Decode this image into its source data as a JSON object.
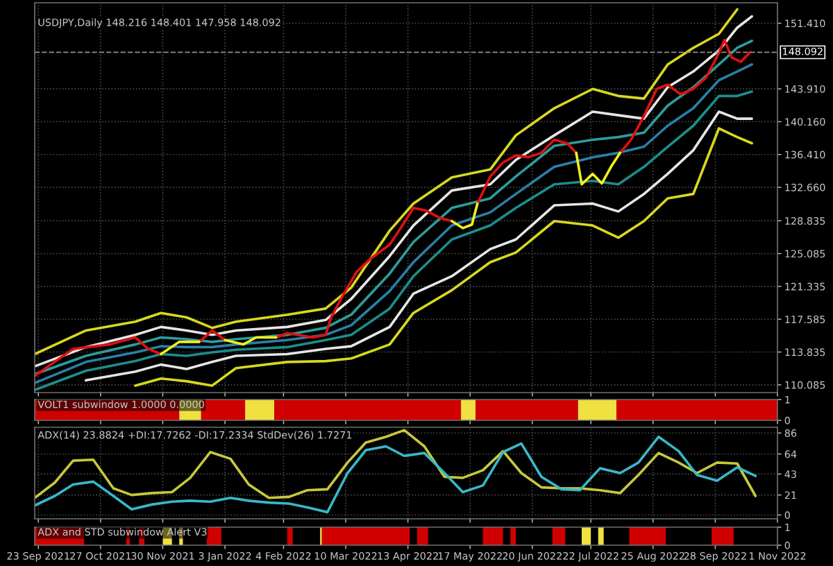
{
  "chart_data": [
    {
      "type": "line",
      "title": "USDJPY,Daily 148.216 148.401 147.958 148.092",
      "xlim": [
        "2021-09-21",
        "2022-11-01"
      ],
      "ylim": [
        109.2,
        153.75
      ],
      "yticks": [
        {
          "value": 110.085,
          "label": "110.085"
        },
        {
          "value": 113.835,
          "label": "113.835"
        },
        {
          "value": 117.585,
          "label": "117.585"
        },
        {
          "value": 121.335,
          "label": "121.335"
        },
        {
          "value": 125.085,
          "label": "125.085"
        },
        {
          "value": 128.835,
          "label": "128.835"
        },
        {
          "value": 132.66,
          "label": "132.660"
        },
        {
          "value": 136.41,
          "label": "136.410"
        },
        {
          "value": 140.16,
          "label": "140.160"
        },
        {
          "value": 143.91,
          "label": "143.910"
        },
        {
          "value": 151.41,
          "label": "151.410"
        }
      ],
      "grid": true,
      "tick_labels": "y",
      "ref_lines": [
        {
          "axis": "y",
          "value": 148.092,
          "label": "148.092",
          "color": "#909090",
          "line_style": "dashed"
        }
      ],
      "x": [
        "2021-09-21",
        "2021-10-19",
        "2021-11-15",
        "2021-11-29",
        "2021-12-13",
        "2021-12-27",
        "2022-01-09",
        "2022-02-06",
        "2022-02-27",
        "2022-03-13",
        "2022-04-03",
        "2022-04-16",
        "2022-05-07",
        "2022-05-28",
        "2022-06-11",
        "2022-07-02",
        "2022-07-23",
        "2022-08-06",
        "2022-08-20",
        "2022-09-02",
        "2022-09-16",
        "2022-09-30",
        "2022-10-10",
        "2022-10-18"
      ],
      "series": [
        {
          "color": "#d8d820",
          "values": [
            113.6,
            116.3,
            117.3,
            118.3,
            117.8,
            116.6,
            117.3,
            118.1,
            118.8,
            121.2,
            127.7,
            130.8,
            133.8,
            134.7,
            138.6,
            141.7,
            143.9,
            143.1,
            142.8,
            146.7,
            148.6,
            150.2,
            153.0,
            null
          ]
        },
        {
          "color": "#e6e6e6",
          "values": [
            112.2,
            114.4,
            115.8,
            116.7,
            116.3,
            115.8,
            116.3,
            116.7,
            117.5,
            119.9,
            124.8,
            128.3,
            132.3,
            133.0,
            135.8,
            138.6,
            141.3,
            140.9,
            140.5,
            144.1,
            145.9,
            148.3,
            150.9,
            152.2
          ]
        },
        {
          "color": "#2e9c9c",
          "values": [
            111.3,
            113.4,
            114.7,
            115.5,
            115.3,
            115.0,
            115.3,
            115.8,
            116.6,
            118.1,
            122.8,
            126.4,
            130.3,
            131.4,
            133.9,
            137.4,
            138.1,
            138.4,
            138.9,
            142.0,
            144.1,
            146.7,
            148.6,
            149.4
          ]
        },
        {
          "color": "#2b7fa8",
          "values": [
            110.3,
            112.7,
            113.8,
            114.5,
            114.4,
            114.4,
            114.7,
            115.2,
            115.8,
            116.9,
            120.8,
            124.1,
            128.3,
            129.8,
            131.9,
            135.0,
            136.1,
            136.6,
            137.3,
            139.7,
            141.7,
            144.9,
            145.9,
            146.7
          ]
        },
        {
          "color": "#1e8c8c",
          "values": [
            109.5,
            111.7,
            112.8,
            113.6,
            113.4,
            113.8,
            114.1,
            114.4,
            115.2,
            115.8,
            118.8,
            122.5,
            126.7,
            128.3,
            130.3,
            133.0,
            133.4,
            133.0,
            135.0,
            137.3,
            139.7,
            143.1,
            143.1,
            143.6
          ]
        },
        {
          "color": "#e6e6e6",
          "values": [
            null,
            110.6,
            111.6,
            112.4,
            111.9,
            112.7,
            113.4,
            113.6,
            114.2,
            114.5,
            116.7,
            120.5,
            122.5,
            125.6,
            126.7,
            130.6,
            130.8,
            129.9,
            131.9,
            134.2,
            136.9,
            141.3,
            140.5,
            140.5
          ]
        },
        {
          "color": "#d8d820",
          "values": [
            null,
            null,
            110.0,
            110.8,
            110.5,
            110.0,
            112.0,
            112.7,
            112.8,
            113.1,
            114.7,
            118.3,
            120.9,
            124.1,
            125.2,
            128.8,
            128.3,
            126.9,
            128.8,
            131.4,
            131.9,
            139.4,
            138.4,
            137.7
          ]
        },
        {
          "color": "#e01010",
          "x": [
            "2021-09-21",
            "2021-10-12",
            "2021-11-01",
            "2021-11-15",
            "2021-11-22",
            "2021-11-29",
            "2021-12-09",
            "2021-12-20",
            "2021-12-27",
            "2022-01-03",
            "2022-01-13",
            "2022-01-20",
            "2022-01-31",
            "2022-02-06",
            "2022-02-20",
            "2022-02-27",
            "2022-03-02",
            "2022-03-09",
            "2022-03-16",
            "2022-03-23",
            "2022-04-03",
            "2022-04-10",
            "2022-04-16",
            "2022-04-23",
            "2022-04-30",
            "2022-05-07",
            "2022-05-13",
            "2022-05-18",
            "2022-05-21",
            "2022-05-28",
            "2022-06-04",
            "2022-06-11",
            "2022-06-18",
            "2022-06-25",
            "2022-07-02",
            "2022-07-09",
            "2022-07-14",
            "2022-07-17",
            "2022-07-23",
            "2022-07-28",
            "2022-08-02",
            "2022-08-07",
            "2022-08-13",
            "2022-08-20",
            "2022-08-27",
            "2022-09-02",
            "2022-09-09",
            "2022-09-16",
            "2022-09-23",
            "2022-09-30",
            "2022-10-03",
            "2022-10-07",
            "2022-10-12",
            "2022-10-17"
          ],
          "values": [
            111.1,
            114.2,
            114.7,
            115.5,
            114.2,
            113.6,
            null,
            115.0,
            116.3,
            115.2,
            null,
            null,
            115.5,
            116.0,
            115.5,
            115.8,
            117.8,
            120.5,
            123.0,
            124.4,
            126.1,
            128.3,
            130.3,
            130.0,
            129.2,
            128.8,
            null,
            null,
            130.8,
            133.9,
            135.5,
            136.3,
            136.1,
            136.6,
            138.1,
            137.7,
            136.6,
            null,
            null,
            null,
            null,
            136.6,
            138.1,
            140.8,
            143.9,
            144.4,
            143.3,
            143.9,
            145.2,
            148.0,
            149.5,
            147.5,
            147.0,
            148.1
          ]
        },
        {
          "color": "#f0f020",
          "x": [
            "2021-11-29",
            "2021-12-09",
            "2021-12-20",
            "2021-12-27",
            "2022-01-03",
            "2022-01-13",
            "2022-01-20",
            "2022-01-31",
            "2022-02-06",
            "2022-02-20",
            "2022-02-27",
            "2022-03-02",
            "2022-03-09",
            "2022-03-16",
            "2022-03-23",
            "2022-04-03",
            "2022-04-10",
            "2022-04-16",
            "2022-04-23",
            "2022-04-30",
            "2022-05-07",
            "2022-05-13",
            "2022-05-18",
            "2022-05-21",
            "2022-05-28",
            "2022-06-04",
            "2022-06-11",
            "2022-06-18",
            "2022-06-25",
            "2022-07-02",
            "2022-07-09",
            "2022-07-14",
            "2022-07-17",
            "2022-07-23",
            "2022-07-28",
            "2022-08-02",
            "2022-08-07"
          ],
          "values": [
            113.6,
            115.0,
            115.0,
            null,
            115.2,
            114.7,
            115.5,
            115.5,
            null,
            null,
            null,
            null,
            null,
            null,
            null,
            null,
            null,
            null,
            null,
            null,
            128.8,
            128.0,
            128.4,
            130.8,
            null,
            null,
            null,
            null,
            null,
            null,
            null,
            136.6,
            133.0,
            134.2,
            133.1,
            135.0,
            136.6
          ]
        }
      ]
    },
    {
      "type": "area",
      "title": "VOLT1 subwindow 1.0000 0.0000",
      "xlim": [
        "2021-09-21",
        "2022-11-01"
      ],
      "ylim": [
        0,
        1
      ],
      "yticks": [
        0,
        1
      ],
      "tick_labels": "y",
      "series": [
        {
          "color": "#d00000",
          "x": [
            "2021-09-21",
            "2021-12-09"
          ],
          "values": [
            1,
            1
          ]
        },
        {
          "color": "#f0e040",
          "x": [
            "2021-12-09",
            "2021-12-21"
          ],
          "values": [
            1,
            1
          ]
        },
        {
          "color": "#d00000",
          "x": [
            "2021-12-21",
            "2022-01-14"
          ],
          "values": [
            1,
            1
          ]
        },
        {
          "color": "#f0e040",
          "x": [
            "2022-01-14",
            "2022-01-30"
          ],
          "values": [
            1,
            1
          ]
        },
        {
          "color": "#d00000",
          "x": [
            "2022-01-30",
            "2022-05-12"
          ],
          "values": [
            1,
            1
          ]
        },
        {
          "color": "#f0e040",
          "x": [
            "2022-05-12",
            "2022-05-20"
          ],
          "values": [
            1,
            1
          ]
        },
        {
          "color": "#d00000",
          "x": [
            "2022-05-20",
            "2022-07-15"
          ],
          "values": [
            1,
            1
          ]
        },
        {
          "color": "#f0e040",
          "x": [
            "2022-07-15",
            "2022-08-05"
          ],
          "values": [
            1,
            1
          ]
        },
        {
          "color": "#d00000",
          "x": [
            "2022-08-05",
            "2022-11-01"
          ],
          "values": [
            1,
            1
          ]
        }
      ]
    },
    {
      "type": "line",
      "title": "ADX(14) 23.8824 +DI:17.7262 -DI:17.2334 StdDev(26) 1.7271",
      "xlim": [
        "2021-09-21",
        "2022-11-01"
      ],
      "ylim": [
        -4,
        92
      ],
      "yticks": [
        0,
        21,
        43,
        64,
        86
      ],
      "grid": true,
      "tick_labels": "y",
      "x": [
        "2021-09-21",
        "2021-10-02",
        "2021-10-12",
        "2021-10-23",
        "2021-11-03",
        "2021-11-13",
        "2021-11-24",
        "2021-12-05",
        "2021-12-15",
        "2021-12-26",
        "2022-01-06",
        "2022-01-16",
        "2022-01-27",
        "2022-02-07",
        "2022-02-17",
        "2022-02-28",
        "2022-03-11",
        "2022-03-21",
        "2022-04-01",
        "2022-04-11",
        "2022-04-22",
        "2022-05-03",
        "2022-05-13",
        "2022-05-24",
        "2022-06-04",
        "2022-06-14",
        "2022-06-25",
        "2022-07-06",
        "2022-07-16",
        "2022-07-27",
        "2022-08-07",
        "2022-08-17",
        "2022-08-28",
        "2022-09-08",
        "2022-09-18",
        "2022-09-29",
        "2022-10-10",
        "2022-10-20"
      ],
      "series": [
        {
          "color": "#c8c83c",
          "values": [
            18,
            34,
            57,
            58,
            28,
            21,
            23,
            24,
            39,
            66,
            59,
            32,
            18,
            19,
            26,
            27,
            55,
            76,
            82,
            89,
            72,
            40,
            39,
            47,
            67,
            44,
            29,
            28,
            28,
            26,
            23,
            42,
            65,
            55,
            44,
            55,
            54,
            20
          ]
        },
        {
          "color": "#38b8c8",
          "values": [
            10,
            20,
            32,
            35,
            20,
            6,
            11,
            14,
            15,
            14,
            18,
            15,
            13,
            12,
            8,
            3,
            44,
            68,
            72,
            62,
            65,
            44,
            24,
            31,
            66,
            75,
            40,
            27,
            26,
            49,
            44,
            55,
            82,
            67,
            42,
            36,
            50,
            41
          ]
        }
      ]
    },
    {
      "type": "area",
      "title": "ADX and STD subwindow Alert V3",
      "xlim": [
        "2021-09-21",
        "2022-11-01"
      ],
      "ylim": [
        0,
        1
      ],
      "yticks": [
        0,
        1
      ],
      "xticks": [
        {
          "value": "2021-09-23",
          "label": "23 Sep 2021"
        },
        {
          "value": "2021-10-27",
          "label": "27 Oct 2021"
        },
        {
          "value": "2021-11-30",
          "label": "30 Nov 2021"
        },
        {
          "value": "2022-01-03",
          "label": "3 Jan 2022"
        },
        {
          "value": "2022-02-04",
          "label": "4 Feb 2022"
        },
        {
          "value": "2022-03-10",
          "label": "10 Mar 2022"
        },
        {
          "value": "2022-04-13",
          "label": "13 Apr 2022"
        },
        {
          "value": "2022-05-17",
          "label": "17 May 2022"
        },
        {
          "value": "2022-06-20",
          "label": "20 Jun 2022"
        },
        {
          "value": "2022-07-22",
          "label": "22 Jul 2022"
        },
        {
          "value": "2022-08-25",
          "label": "25 Aug 2022"
        },
        {
          "value": "2022-09-28",
          "label": "28 Sep 2022"
        },
        {
          "value": "2022-11-01",
          "label": "1 Nov 2022"
        }
      ],
      "series": [
        {
          "color": "#d00000",
          "x": [
            "2021-09-21",
            "2021-10-18"
          ],
          "values": [
            1,
            1
          ]
        },
        {
          "color": "#d00000",
          "x": [
            "2021-11-10",
            "2021-11-12"
          ],
          "values": [
            1,
            1
          ]
        },
        {
          "color": "#d00000",
          "x": [
            "2021-11-17",
            "2021-11-20"
          ],
          "values": [
            1,
            1
          ]
        },
        {
          "color": "#f0e040",
          "x": [
            "2021-11-30",
            "2021-12-05"
          ],
          "values": [
            1,
            1
          ]
        },
        {
          "color": "#f0e040",
          "x": [
            "2021-12-09",
            "2021-12-11"
          ],
          "values": [
            1,
            1
          ]
        },
        {
          "color": "#d00000",
          "x": [
            "2021-12-24",
            "2022-01-01"
          ],
          "values": [
            1,
            1
          ]
        },
        {
          "color": "#d00000",
          "x": [
            "2022-02-06",
            "2022-02-09"
          ],
          "values": [
            1,
            1
          ]
        },
        {
          "color": "#f0e040",
          "x": [
            "2022-02-24",
            "2022-02-25"
          ],
          "values": [
            1,
            1
          ]
        },
        {
          "color": "#d00000",
          "x": [
            "2022-02-25",
            "2022-04-14"
          ],
          "values": [
            1,
            1
          ]
        },
        {
          "color": "#d00000",
          "x": [
            "2022-04-18",
            "2022-04-24"
          ],
          "values": [
            1,
            1
          ]
        },
        {
          "color": "#d00000",
          "x": [
            "2022-05-24",
            "2022-06-04"
          ],
          "values": [
            1,
            1
          ]
        },
        {
          "color": "#d00000",
          "x": [
            "2022-06-08",
            "2022-06-11"
          ],
          "values": [
            1,
            1
          ]
        },
        {
          "color": "#d00000",
          "x": [
            "2022-07-01",
            "2022-07-08"
          ],
          "values": [
            1,
            1
          ]
        },
        {
          "color": "#f0e040",
          "x": [
            "2022-07-17",
            "2022-07-22"
          ],
          "values": [
            1,
            1
          ]
        },
        {
          "color": "#f0e040",
          "x": [
            "2022-07-26",
            "2022-07-29"
          ],
          "values": [
            1,
            1
          ]
        },
        {
          "color": "#d00000",
          "x": [
            "2022-08-12",
            "2022-09-01"
          ],
          "values": [
            1,
            1
          ]
        },
        {
          "color": "#d00000",
          "x": [
            "2022-09-26",
            "2022-10-08"
          ],
          "values": [
            1,
            1
          ]
        }
      ]
    }
  ]
}
